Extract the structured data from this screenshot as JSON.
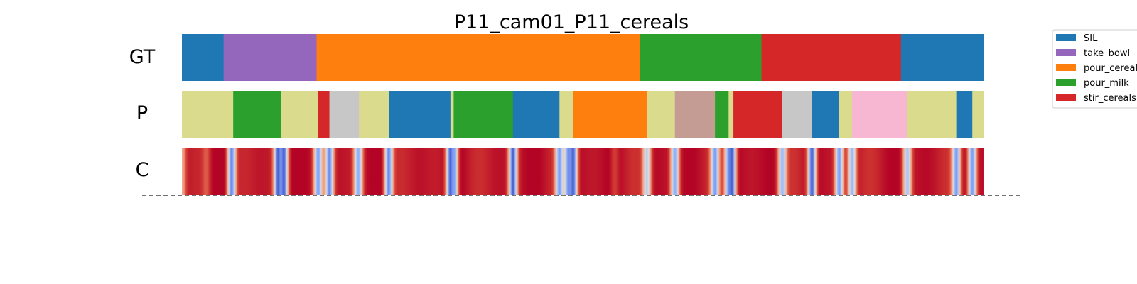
{
  "chart_data": {
    "type": "heatmap",
    "title": "P11_cam01_P11_cereals",
    "rows": [
      "GT",
      "P",
      "C"
    ],
    "x_range": [
      0,
      1
    ],
    "legend": {
      "placement": "top-right",
      "entries": [
        {
          "label": "SIL",
          "color": "#1f77b4"
        },
        {
          "label": "take_bowl",
          "color": "#9467bd"
        },
        {
          "label": "pour_cereals",
          "color": "#ff7f0e"
        },
        {
          "label": "pour_milk",
          "color": "#2ca02c"
        },
        {
          "label": "stir_cereals",
          "color": "#d62728"
        }
      ]
    },
    "palette": {
      "SIL": "#1f77b4",
      "take_bowl": "#9467bd",
      "pour_cereals": "#ff7f0e",
      "pour_milk": "#2ca02c",
      "stir_cereals": "#d62728",
      "olive": "#dbdb8d",
      "gray": "#c7c7c7",
      "rosybrown": "#c49c94",
      "pink": "#f7b6d2"
    },
    "gt_segments": [
      {
        "start": 0.0,
        "end": 0.052,
        "class": "SIL"
      },
      {
        "start": 0.052,
        "end": 0.168,
        "class": "take_bowl"
      },
      {
        "start": 0.168,
        "end": 0.571,
        "class": "pour_cereals"
      },
      {
        "start": 0.571,
        "end": 0.723,
        "class": "pour_milk"
      },
      {
        "start": 0.723,
        "end": 0.897,
        "class": "stir_cereals"
      },
      {
        "start": 0.897,
        "end": 1.0,
        "class": "SIL"
      }
    ],
    "pred_segments": [
      {
        "start": 0.0,
        "end": 0.064,
        "class": "olive"
      },
      {
        "start": 0.064,
        "end": 0.124,
        "class": "pour_milk"
      },
      {
        "start": 0.124,
        "end": 0.17,
        "class": "olive"
      },
      {
        "start": 0.17,
        "end": 0.184,
        "class": "stir_cereals"
      },
      {
        "start": 0.184,
        "end": 0.221,
        "class": "gray"
      },
      {
        "start": 0.221,
        "end": 0.258,
        "class": "olive"
      },
      {
        "start": 0.258,
        "end": 0.335,
        "class": "SIL"
      },
      {
        "start": 0.335,
        "end": 0.339,
        "class": "olive"
      },
      {
        "start": 0.339,
        "end": 0.413,
        "class": "pour_milk"
      },
      {
        "start": 0.413,
        "end": 0.471,
        "class": "SIL"
      },
      {
        "start": 0.471,
        "end": 0.488,
        "class": "olive"
      },
      {
        "start": 0.488,
        "end": 0.58,
        "class": "pour_cereals"
      },
      {
        "start": 0.58,
        "end": 0.615,
        "class": "olive"
      },
      {
        "start": 0.615,
        "end": 0.665,
        "class": "rosybrown"
      },
      {
        "start": 0.665,
        "end": 0.682,
        "class": "pour_milk"
      },
      {
        "start": 0.682,
        "end": 0.688,
        "class": "olive"
      },
      {
        "start": 0.688,
        "end": 0.749,
        "class": "stir_cereals"
      },
      {
        "start": 0.749,
        "end": 0.786,
        "class": "gray"
      },
      {
        "start": 0.786,
        "end": 0.82,
        "class": "SIL"
      },
      {
        "start": 0.82,
        "end": 0.836,
        "class": "olive"
      },
      {
        "start": 0.836,
        "end": 0.905,
        "class": "pink"
      },
      {
        "start": 0.905,
        "end": 0.966,
        "class": "olive"
      },
      {
        "start": 0.966,
        "end": 0.986,
        "class": "SIL"
      },
      {
        "start": 0.986,
        "end": 1.0,
        "class": "olive"
      }
    ],
    "confidence_low_points": [
      {
        "x": 0.0,
        "c": 0.7
      },
      {
        "x": 0.03,
        "c": 0.85
      },
      {
        "x": 0.062,
        "c": 0.15
      },
      {
        "x": 0.12,
        "c": 0.05
      },
      {
        "x": 0.127,
        "c": 0.05
      },
      {
        "x": 0.17,
        "c": 0.2
      },
      {
        "x": 0.184,
        "c": 0.15
      },
      {
        "x": 0.22,
        "c": 0.25
      },
      {
        "x": 0.258,
        "c": 0.15
      },
      {
        "x": 0.335,
        "c": 0.05
      },
      {
        "x": 0.339,
        "c": 0.2
      },
      {
        "x": 0.413,
        "c": 0.05
      },
      {
        "x": 0.471,
        "c": 0.2
      },
      {
        "x": 0.482,
        "c": 0.2
      },
      {
        "x": 0.488,
        "c": 0.05
      },
      {
        "x": 0.54,
        "c": 0.9
      },
      {
        "x": 0.58,
        "c": 0.4
      },
      {
        "x": 0.615,
        "c": 0.25
      },
      {
        "x": 0.665,
        "c": 0.2
      },
      {
        "x": 0.682,
        "c": 0.3
      },
      {
        "x": 0.686,
        "c": 0.05
      },
      {
        "x": 0.749,
        "c": 0.3
      },
      {
        "x": 0.786,
        "c": 0.05
      },
      {
        "x": 0.82,
        "c": 0.2
      },
      {
        "x": 0.836,
        "c": 0.3
      },
      {
        "x": 0.905,
        "c": 0.35
      },
      {
        "x": 0.966,
        "c": 0.2
      },
      {
        "x": 0.986,
        "c": 0.2
      }
    ]
  }
}
